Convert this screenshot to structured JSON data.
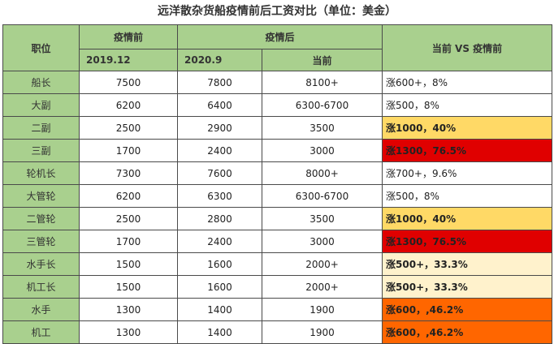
{
  "title": "远洋散杂货船疫情前后工资对比（单位：美金）",
  "header": {
    "position": "职位",
    "before": "疫情前",
    "after": "疫情后",
    "compare": "当前 VS 疫情前",
    "date_2019": "2019.12",
    "date_2020": "2020.9",
    "current": "当前"
  },
  "colors": {
    "header_green": "#a9d08e",
    "light_yellow": "#fff2cc",
    "yellow": "#ffd966",
    "orange": "#ff6600",
    "red": "#e00000",
    "white": "#ffffff"
  },
  "rows": [
    {
      "position": "船长",
      "v2019": "7500",
      "v2020": "7800",
      "current": "8100+",
      "compare": "涨600+，8%",
      "bg": "#ffffff",
      "bold": false
    },
    {
      "position": "大副",
      "v2019": "6200",
      "v2020": "6400",
      "current": "6300-6700",
      "compare": "涨500，8%",
      "bg": "#ffffff",
      "bold": false
    },
    {
      "position": "二副",
      "v2019": "2500",
      "v2020": "2900",
      "current": "3500",
      "compare": "涨1000，40%",
      "bg": "#ffd966",
      "bold": true
    },
    {
      "position": "三副",
      "v2019": "1700",
      "v2020": "2400",
      "current": "3000",
      "compare": "涨1300，76.5%",
      "bg": "#e00000",
      "bold": true
    },
    {
      "position": "轮机长",
      "v2019": "7300",
      "v2020": "7600",
      "current": "8000+",
      "compare": "涨700+，9.6%",
      "bg": "#ffffff",
      "bold": false
    },
    {
      "position": "大管轮",
      "v2019": "6200",
      "v2020": "6300",
      "current": "6300-6700",
      "compare": "涨500，8%",
      "bg": "#ffffff",
      "bold": false
    },
    {
      "position": "二管轮",
      "v2019": "2500",
      "v2020": "2800",
      "current": "3500",
      "compare": "涨1000，40%",
      "bg": "#ffd966",
      "bold": true
    },
    {
      "position": "三管轮",
      "v2019": "1700",
      "v2020": "2400",
      "current": "3000",
      "compare": "涨1300，76.5%",
      "bg": "#e00000",
      "bold": true
    },
    {
      "position": "水手长",
      "v2019": "1500",
      "v2020": "1600",
      "current": "2000+",
      "compare": "涨500+，33.3%",
      "bg": "#fff2cc",
      "bold": true
    },
    {
      "position": "机工长",
      "v2019": "1500",
      "v2020": "1600",
      "current": "2000+",
      "compare": "涨500+，33.3%",
      "bg": "#fff2cc",
      "bold": true
    },
    {
      "position": "水手",
      "v2019": "1300",
      "v2020": "1400",
      "current": "1900",
      "compare": "涨600，,46.2%",
      "bg": "#ff6600",
      "bold": true
    },
    {
      "position": "机工",
      "v2019": "1300",
      "v2020": "1400",
      "current": "1900",
      "compare": "涨600，,46.2%",
      "bg": "#ff6600",
      "bold": true
    }
  ]
}
